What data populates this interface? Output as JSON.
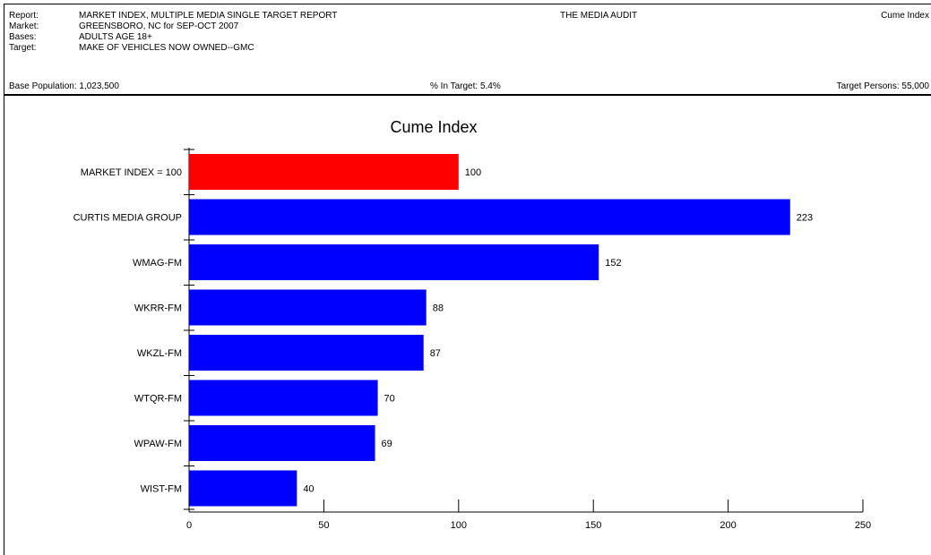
{
  "header": {
    "labels": [
      "Report:",
      "Market:",
      "Bases:",
      "Target:"
    ],
    "values": [
      "MARKET INDEX, MULTIPLE MEDIA SINGLE TARGET REPORT",
      "GREENSBORO, NC for SEP-OCT 2007",
      "ADULTS AGE 18+",
      "MAKE OF VEHICLES NOW OWNED--GMC"
    ],
    "center": "THE MEDIA AUDIT",
    "right": "Cume Index"
  },
  "population": {
    "base": "Base Population: 1,023,500",
    "pct": "% In Target: 5.4%",
    "target": "Target Persons: 55,000"
  },
  "colors": {
    "highlight": "#ff0000",
    "bar": "#0000ff"
  },
  "chart_data": {
    "type": "bar",
    "orientation": "horizontal",
    "title": "Cume Index",
    "categories": [
      "MARKET INDEX = 100",
      "CURTIS MEDIA GROUP",
      "WMAG-FM",
      "WKRR-FM",
      "WKZL-FM",
      "WTQR-FM",
      "WPAW-FM",
      "WIST-FM"
    ],
    "values": [
      100,
      223,
      152,
      88,
      87,
      70,
      69,
      40
    ],
    "data_labels": [
      "100",
      "223",
      "152",
      "88",
      "87",
      "70",
      "69",
      "40"
    ],
    "xlim": [
      0,
      250
    ],
    "xticks": [
      0,
      50,
      100,
      150,
      200,
      250
    ],
    "grid": false,
    "legend": "none"
  }
}
